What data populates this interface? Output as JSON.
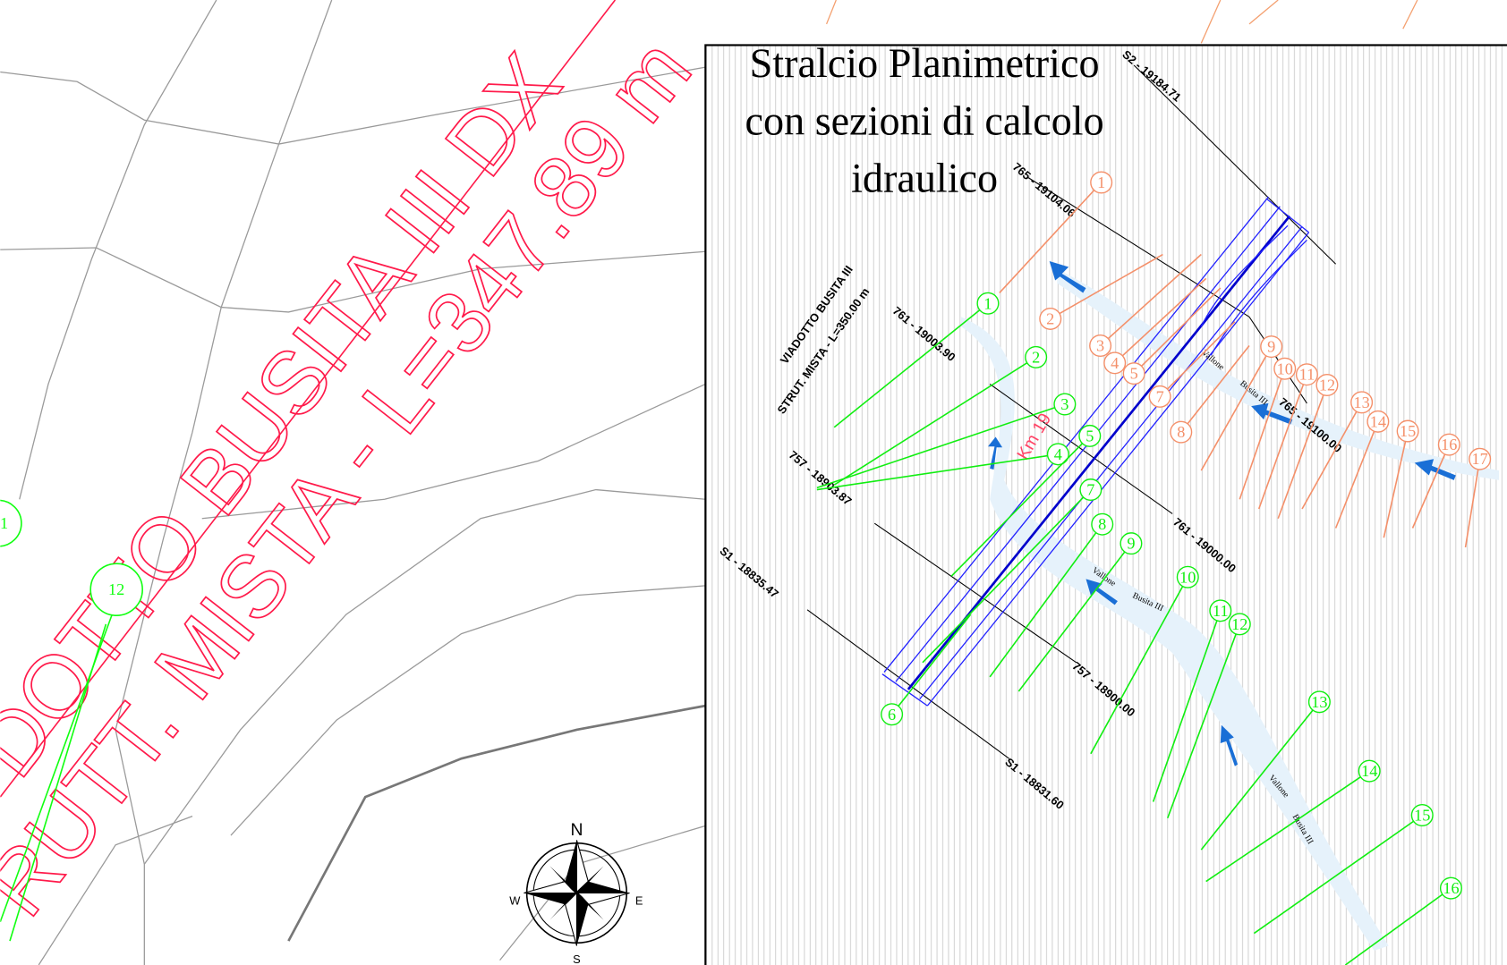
{
  "title": [
    "Stralcio Planimetrico",
    "con sezioni di calcolo",
    "idraulico"
  ],
  "viaduct_label": [
    "DOTTO BUSITA III DX",
    "RUTT. MISTA - L=347.89 m"
  ],
  "structure_label": [
    "VIADOTTO BUSITA III",
    "STRUT. MISTA - L=350.00 m"
  ],
  "sections": [
    "S2 - 19184.71",
    "765 - 19104.06",
    "761 - 19003.90",
    "757 - 18903.87",
    "S1 - 18835.47",
    "765 - 19100.00",
    "761 - 19000.00",
    "757 - 18900.00",
    "S1 - 18831.60"
  ],
  "stream_labels": [
    "Km 19",
    "Vallone",
    "Busita III",
    "Vallone",
    "Busita III",
    "Vallone",
    "Busita III"
  ],
  "green_sections": [
    "1",
    "2",
    "3",
    "4",
    "5",
    "6",
    "7",
    "8",
    "9",
    "10",
    "11",
    "12",
    "13",
    "14",
    "15",
    "16"
  ],
  "orange_sections": [
    "1",
    "2",
    "3",
    "4",
    "5",
    "7",
    "8",
    "9",
    "10",
    "11",
    "12",
    "13",
    "14",
    "15",
    "16",
    "17"
  ],
  "outer_sections": [
    "1",
    "12"
  ],
  "compass": {
    "north": "N",
    "south": "S",
    "east": "E",
    "west": "W"
  }
}
